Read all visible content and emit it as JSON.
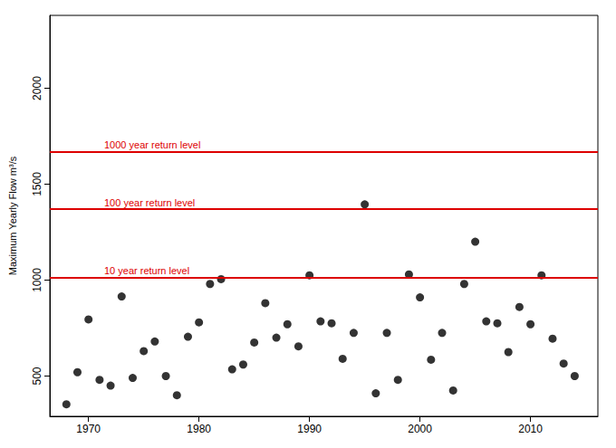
{
  "chart_data": {
    "type": "scatter",
    "y_label": "Maximum Yearly Flow m³/s",
    "x": [
      1968,
      1969,
      1970,
      1971,
      1972,
      1973,
      1974,
      1975,
      1976,
      1977,
      1978,
      1979,
      1980,
      1981,
      1982,
      1983,
      1984,
      1985,
      1986,
      1987,
      1988,
      1989,
      1990,
      1991,
      1992,
      1993,
      1994,
      1995,
      1996,
      1997,
      1998,
      1999,
      2000,
      2001,
      2002,
      2003,
      2004,
      2005,
      2006,
      2007,
      2008,
      2009,
      2010,
      2011,
      2012,
      2013,
      2014
    ],
    "values": [
      353,
      520,
      795,
      480,
      450,
      915,
      490,
      630,
      680,
      500,
      400,
      705,
      780,
      980,
      1005,
      535,
      560,
      675,
      880,
      700,
      770,
      655,
      1025,
      785,
      775,
      590,
      725,
      1395,
      410,
      725,
      480,
      1030,
      910,
      585,
      725,
      425,
      980,
      1200,
      785,
      775,
      625,
      860,
      770,
      1025,
      695,
      565,
      500
    ],
    "color": "#000000",
    "marker": "circle",
    "xlim": [
      1966.5,
      2016.1
    ],
    "xticks": [
      1970,
      1980,
      1990,
      2000,
      2010
    ],
    "ylim": [
      290,
      2380
    ],
    "yticks": [
      500,
      1000,
      1500,
      2000
    ],
    "grid": false,
    "reference_lines": [
      {
        "label": "10 year return level",
        "value": 1015,
        "color": "#dd0000"
      },
      {
        "label": "100 year return level",
        "value": 1370,
        "color": "#dd0000"
      },
      {
        "label": "1000 year return level",
        "value": 1668,
        "color": "#dd0000"
      }
    ]
  }
}
